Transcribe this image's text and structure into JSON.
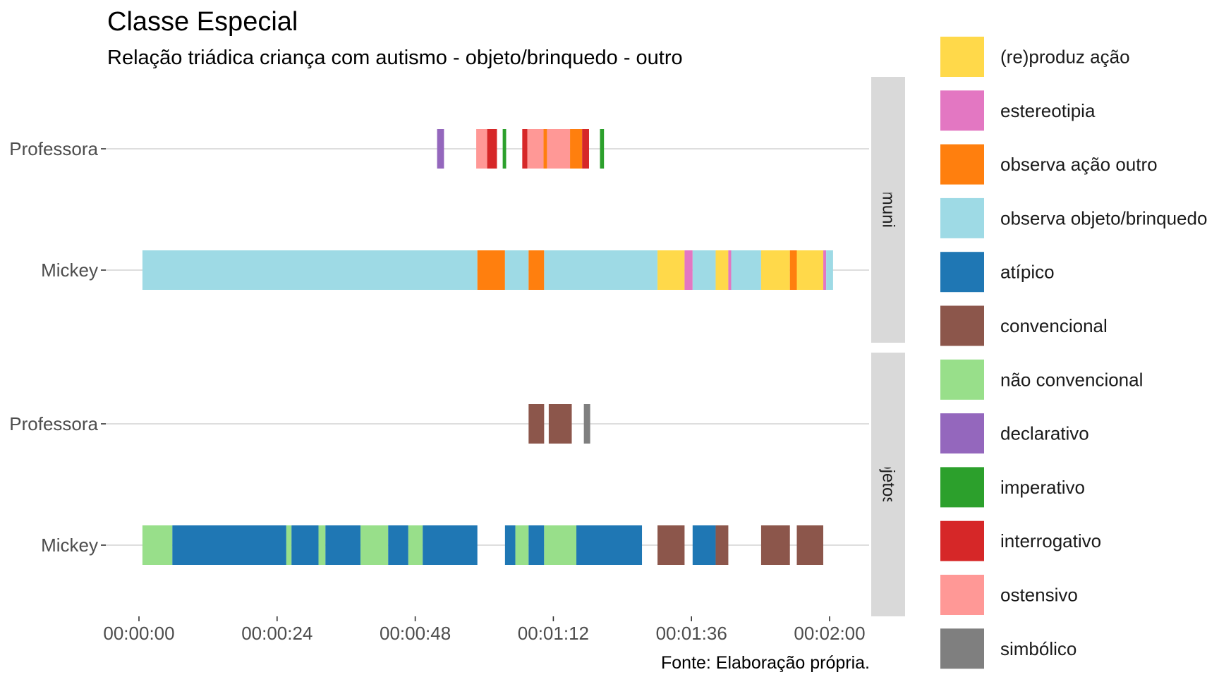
{
  "chart_data": {
    "type": "timeline",
    "title": "Classe Especial",
    "subtitle": "Relação triádica criança com autismo - objeto/brinquedo - outro",
    "caption": "Fonte: Elaboração própria.",
    "x_unit": "seconds",
    "xlim": [
      0,
      124
    ],
    "x_ticks": [
      {
        "value": 0,
        "label": "00:00:00"
      },
      {
        "value": 24,
        "label": "00:00:24"
      },
      {
        "value": 48,
        "label": "00:00:48"
      },
      {
        "value": 72,
        "label": "00:01:12"
      },
      {
        "value": 96,
        "label": "00:01:36"
      },
      {
        "value": 120,
        "label": "00:02:00"
      }
    ],
    "categories": [
      {
        "key": "reproduz",
        "label": "(re)produz ação",
        "color": "#FFD94A"
      },
      {
        "key": "estereotipia",
        "label": "estereotipia",
        "color": "#E377C2"
      },
      {
        "key": "observa_acao",
        "label": "observa ação outro",
        "color": "#FF7F0E"
      },
      {
        "key": "observa_objeto",
        "label": "observa objeto/brinquedo",
        "color": "#9EDAE5"
      },
      {
        "key": "atipico",
        "label": "atípico",
        "color": "#1F77B4"
      },
      {
        "key": "convencional",
        "label": "convencional",
        "color": "#8C564B"
      },
      {
        "key": "nao_convencional",
        "label": "não convencional",
        "color": "#98DF8A"
      },
      {
        "key": "declarativo",
        "label": "declarativo",
        "color": "#9467BD"
      },
      {
        "key": "imperativo",
        "label": "imperativo",
        "color": "#2CA02C"
      },
      {
        "key": "interrogativo",
        "label": "interrogativo",
        "color": "#D62728"
      },
      {
        "key": "ostensivo",
        "label": "ostensivo",
        "color": "#FF9896"
      },
      {
        "key": "simbolico",
        "label": "simbólico",
        "color": "#7F7F7F"
      }
    ],
    "facets": [
      {
        "strip_label": "Aspectos da Comunicação/Interação",
        "rows": [
          {
            "label": "Professora",
            "segments": [
              {
                "start": 51.8,
                "end": 53.0,
                "category": "declarativo"
              },
              {
                "start": 58.6,
                "end": 60.5,
                "category": "ostensivo"
              },
              {
                "start": 60.5,
                "end": 62.2,
                "category": "interrogativo"
              },
              {
                "start": 63.2,
                "end": 63.8,
                "category": "imperativo"
              },
              {
                "start": 66.6,
                "end": 67.5,
                "category": "interrogativo"
              },
              {
                "start": 67.5,
                "end": 70.3,
                "category": "ostensivo"
              },
              {
                "start": 70.3,
                "end": 70.9,
                "category": "observa_acao"
              },
              {
                "start": 70.9,
                "end": 74.9,
                "category": "ostensivo"
              },
              {
                "start": 74.9,
                "end": 77.0,
                "category": "observa_acao"
              },
              {
                "start": 77.0,
                "end": 78.2,
                "category": "interrogativo"
              },
              {
                "start": 80.1,
                "end": 80.8,
                "category": "imperativo"
              }
            ]
          },
          {
            "label": "Mickey",
            "segments": [
              {
                "start": 0.6,
                "end": 58.8,
                "category": "observa_objeto"
              },
              {
                "start": 58.8,
                "end": 63.6,
                "category": "observa_acao"
              },
              {
                "start": 63.6,
                "end": 67.7,
                "category": "observa_objeto"
              },
              {
                "start": 67.7,
                "end": 70.4,
                "category": "observa_acao"
              },
              {
                "start": 70.4,
                "end": 90.1,
                "category": "observa_objeto"
              },
              {
                "start": 90.1,
                "end": 94.8,
                "category": "reproduz"
              },
              {
                "start": 94.8,
                "end": 96.2,
                "category": "estereotipia"
              },
              {
                "start": 96.2,
                "end": 100.2,
                "category": "observa_objeto"
              },
              {
                "start": 100.2,
                "end": 102.4,
                "category": "reproduz"
              },
              {
                "start": 102.4,
                "end": 102.9,
                "category": "estereotipia"
              },
              {
                "start": 102.9,
                "end": 108.1,
                "category": "observa_objeto"
              },
              {
                "start": 108.1,
                "end": 113.1,
                "category": "reproduz"
              },
              {
                "start": 113.1,
                "end": 114.3,
                "category": "observa_acao"
              },
              {
                "start": 114.3,
                "end": 118.9,
                "category": "reproduz"
              },
              {
                "start": 118.9,
                "end": 119.4,
                "category": "estereotipia"
              },
              {
                "start": 119.4,
                "end": 120.6,
                "category": "observa_objeto"
              }
            ]
          }
        ]
      },
      {
        "strip_label": "Usos dos objetos/brinquedos",
        "rows": [
          {
            "label": "Professora",
            "segments": [
              {
                "start": 67.7,
                "end": 70.4,
                "category": "convencional"
              },
              {
                "start": 71.2,
                "end": 75.2,
                "category": "convencional"
              },
              {
                "start": 77.3,
                "end": 78.4,
                "category": "simbolico"
              }
            ]
          },
          {
            "label": "Mickey",
            "segments": [
              {
                "start": 0.6,
                "end": 5.8,
                "category": "nao_convencional"
              },
              {
                "start": 5.8,
                "end": 25.6,
                "category": "atipico"
              },
              {
                "start": 25.6,
                "end": 26.5,
                "category": "nao_convencional"
              },
              {
                "start": 26.5,
                "end": 31.2,
                "category": "atipico"
              },
              {
                "start": 31.2,
                "end": 32.4,
                "category": "nao_convencional"
              },
              {
                "start": 32.4,
                "end": 38.5,
                "category": "atipico"
              },
              {
                "start": 38.5,
                "end": 43.3,
                "category": "nao_convencional"
              },
              {
                "start": 43.3,
                "end": 46.8,
                "category": "atipico"
              },
              {
                "start": 46.8,
                "end": 49.3,
                "category": "nao_convencional"
              },
              {
                "start": 49.3,
                "end": 58.8,
                "category": "atipico"
              },
              {
                "start": 63.6,
                "end": 65.4,
                "category": "atipico"
              },
              {
                "start": 65.4,
                "end": 67.7,
                "category": "nao_convencional"
              },
              {
                "start": 67.7,
                "end": 70.4,
                "category": "atipico"
              },
              {
                "start": 70.4,
                "end": 76.0,
                "category": "nao_convencional"
              },
              {
                "start": 76.0,
                "end": 87.4,
                "category": "atipico"
              },
              {
                "start": 90.1,
                "end": 94.8,
                "category": "convencional"
              },
              {
                "start": 96.2,
                "end": 100.2,
                "category": "atipico"
              },
              {
                "start": 100.2,
                "end": 102.4,
                "category": "convencional"
              },
              {
                "start": 108.1,
                "end": 113.1,
                "category": "convencional"
              },
              {
                "start": 114.3,
                "end": 118.9,
                "category": "convencional"
              }
            ]
          }
        ]
      }
    ]
  }
}
